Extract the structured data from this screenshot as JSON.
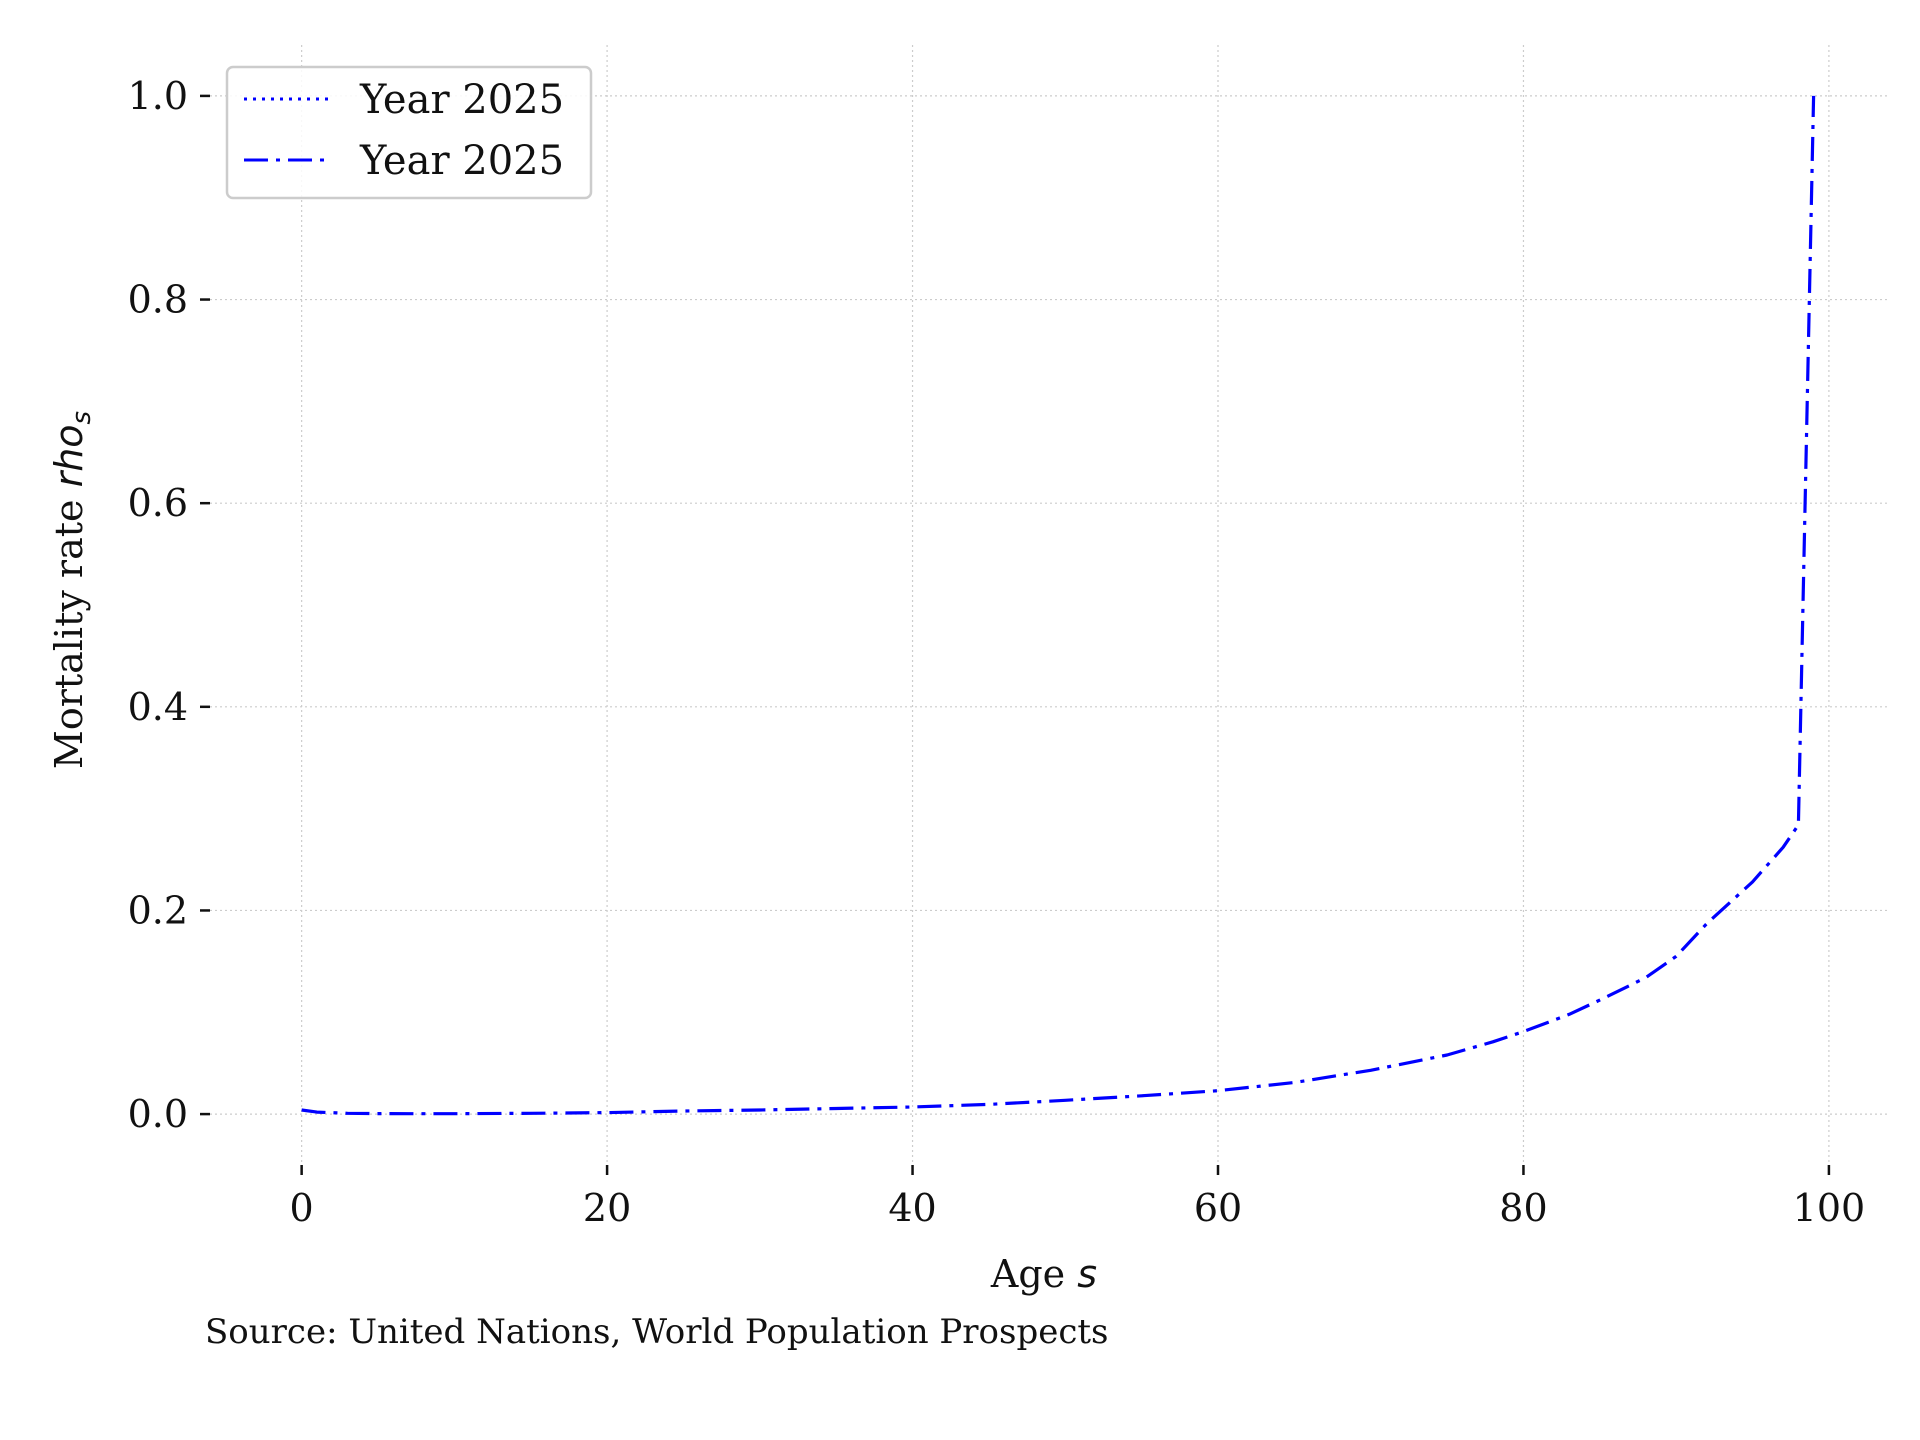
{
  "chart_data": {
    "type": "line",
    "title": "",
    "xlabel": "Age",
    "xlabel_var": "s",
    "ylabel": "Mortality rate",
    "ylabel_var": "rho",
    "ylabel_sub": "s",
    "xlim": [
      -6,
      104
    ],
    "ylim": [
      -0.05,
      1.05
    ],
    "xticks": [
      0,
      20,
      40,
      60,
      80,
      100
    ],
    "xtick_labels": [
      "0",
      "20",
      "40",
      "60",
      "80",
      "100"
    ],
    "yticks": [
      0.0,
      0.2,
      0.4,
      0.6,
      0.8,
      1.0
    ],
    "ytick_labels": [
      "0.0",
      "0.2",
      "0.4",
      "0.6",
      "0.8",
      "1.0"
    ],
    "grid": true,
    "legend_position": "upper-left",
    "source_note": "Source: United Nations, World Population Prospects",
    "series": [
      {
        "name": "Year 2025",
        "color": "#0000ff",
        "linestyle": "dotted",
        "x": [],
        "y": []
      },
      {
        "name": "Year 2025",
        "color": "#0000ff",
        "linestyle": "dashdot",
        "x": [
          0,
          1,
          3,
          5,
          7,
          10,
          15,
          20,
          25,
          30,
          35,
          40,
          45,
          50,
          55,
          60,
          65,
          70,
          75,
          78,
          80,
          83,
          85,
          88,
          90,
          92,
          95,
          97,
          98,
          99
        ],
        "y": [
          0.004,
          0.002,
          0.0008,
          0.0005,
          0.0004,
          0.0004,
          0.0008,
          0.0015,
          0.003,
          0.004,
          0.0055,
          0.007,
          0.0095,
          0.0135,
          0.018,
          0.023,
          0.031,
          0.043,
          0.058,
          0.071,
          0.081,
          0.098,
          0.112,
          0.134,
          0.155,
          0.187,
          0.228,
          0.262,
          0.284,
          1.0
        ]
      }
    ]
  }
}
